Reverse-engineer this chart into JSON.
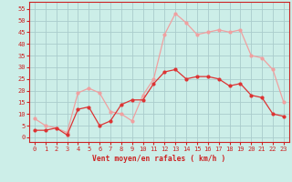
{
  "hours": [
    0,
    1,
    2,
    3,
    4,
    5,
    6,
    7,
    8,
    9,
    10,
    11,
    12,
    13,
    14,
    15,
    16,
    17,
    18,
    19,
    20,
    21,
    22,
    23
  ],
  "wind_mean": [
    3,
    3,
    4,
    1,
    12,
    13,
    5,
    7,
    14,
    16,
    16,
    23,
    28,
    29,
    25,
    26,
    26,
    25,
    22,
    23,
    18,
    17,
    10,
    9
  ],
  "wind_gust": [
    8,
    5,
    4,
    2,
    19,
    21,
    19,
    11,
    10,
    7,
    18,
    25,
    44,
    53,
    49,
    44,
    45,
    46,
    45,
    46,
    35,
    34,
    29,
    15
  ],
  "mean_color": "#dd3333",
  "gust_color": "#f0a0a0",
  "bg_color": "#cceee8",
  "grid_color": "#aacccc",
  "axis_color": "#cc2222",
  "xlabel": "Vent moyen/en rafales ( km/h )",
  "ylim": [
    -2,
    58
  ],
  "yticks": [
    0,
    5,
    10,
    15,
    20,
    25,
    30,
    35,
    40,
    45,
    50,
    55
  ],
  "marker_size": 2.0,
  "linewidth": 0.9,
  "tick_fontsize": 5.0,
  "xlabel_fontsize": 5.8
}
